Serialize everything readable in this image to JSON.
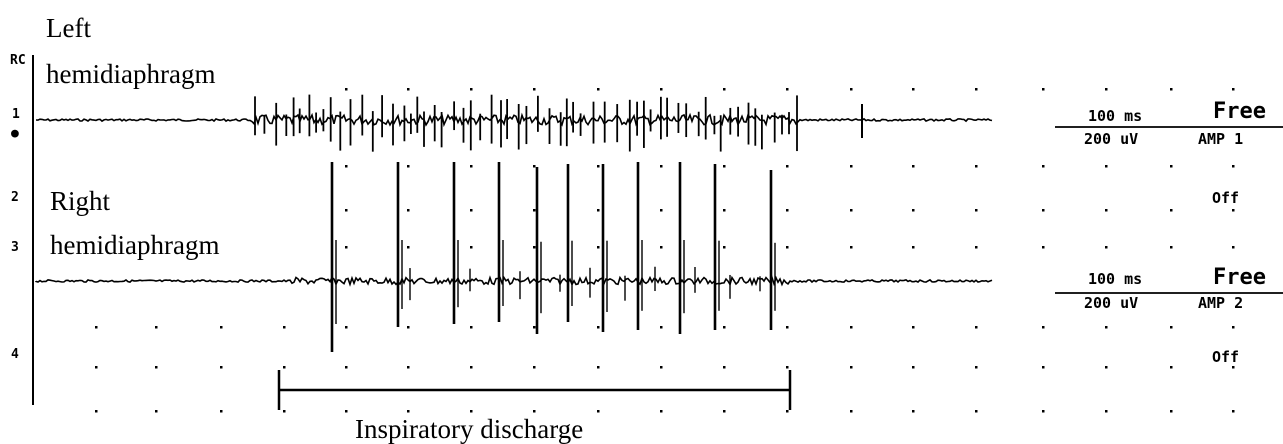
{
  "labels": {
    "left_line1": "Left",
    "left_line2": "hemidiaphragm",
    "right_line1": "Right",
    "right_line2": "hemidiaphragm",
    "bracket": "Inspiratory discharge"
  },
  "side_markers": {
    "top_letters": "RC",
    "ch1": "1",
    "ch1_dot": "●",
    "ch2": "2",
    "ch3": "3",
    "ch4": "4"
  },
  "channel1_readout": {
    "time": "100 ms",
    "amp": "200 uV",
    "mode": "Free",
    "amp_name": "AMP 1"
  },
  "channel2_state": "Off",
  "channel3_readout": {
    "time": "100 ms",
    "amp": "200 uV",
    "mode": "Free",
    "amp_name": "AMP 2"
  },
  "channel4_state": "Off",
  "colors": {
    "trace": "#000000",
    "background": "#ffffff"
  }
}
